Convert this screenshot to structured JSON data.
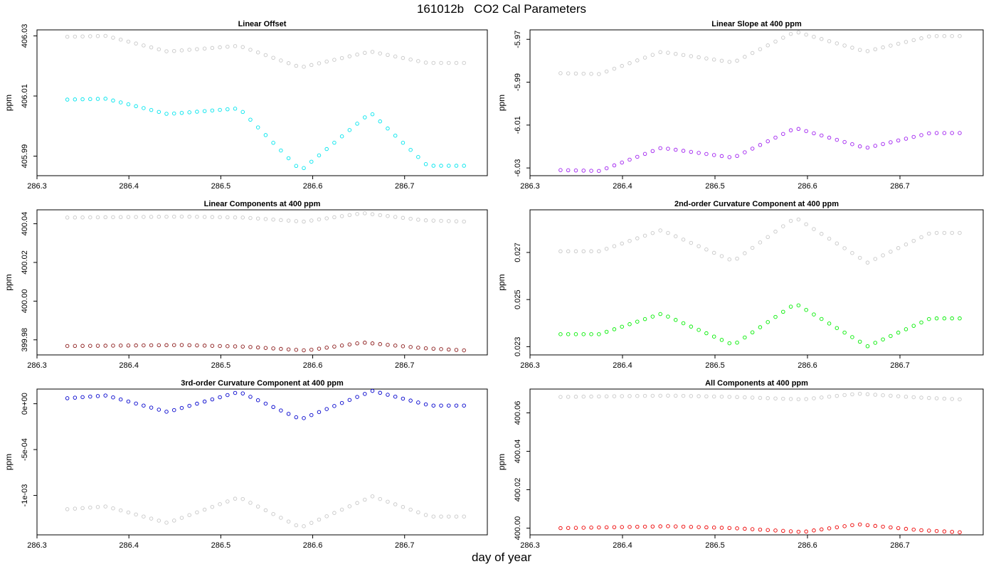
{
  "figure": {
    "title": "161012b   CO2 Cal Parameters",
    "xlabel": "day of year"
  },
  "chart_data": [
    {
      "type": "scatter",
      "title": "Linear Offset",
      "ylabel": "ppm",
      "xlim": [
        286.3,
        286.79
      ],
      "ylim": [
        405.9835,
        406.032
      ],
      "xticks": [
        286.3,
        286.4,
        286.5,
        286.6,
        286.7
      ],
      "xtick_labels": [
        "286.3",
        "286.4",
        "286.5",
        "286.6",
        "286.7"
      ],
      "yticks": [
        405.99,
        406.01,
        406.03
      ],
      "ytick_labels": [
        "405.99",
        "406.01",
        "406.03"
      ],
      "x_range": [
        286.333,
        286.767,
        0.0083
      ],
      "series": [
        {
          "color": "#c8c8c8",
          "knots": [
            [
              286.333,
              406.0297
            ],
            [
              286.375,
              406.03
            ],
            [
              286.442,
              406.0248
            ],
            [
              286.52,
              406.0267
            ],
            [
              286.587,
              406.0195
            ],
            [
              286.663,
              406.0248
            ],
            [
              286.725,
              406.021
            ],
            [
              286.767,
              406.021
            ]
          ]
        },
        {
          "color": "#00e5ee",
          "knots": [
            [
              286.333,
              406.0088
            ],
            [
              286.375,
              406.0091
            ],
            [
              286.442,
              406.004
            ],
            [
              286.52,
              406.0059
            ],
            [
              286.587,
              405.9852
            ],
            [
              286.663,
              406.0045
            ],
            [
              286.725,
              405.9868
            ],
            [
              286.767,
              405.9868
            ]
          ]
        }
      ]
    },
    {
      "type": "scatter",
      "title": "Linear Slope at 400 ppm",
      "ylabel": "ppm",
      "xlim": [
        286.3,
        286.79
      ],
      "ylim": [
        -6.0336,
        -5.9656
      ],
      "xticks": [
        286.3,
        286.4,
        286.5,
        286.6,
        286.7
      ],
      "xtick_labels": [
        "286.3",
        "286.4",
        "286.5",
        "286.6",
        "286.7"
      ],
      "yticks": [
        -6.03,
        -6.01,
        -5.99,
        -5.97
      ],
      "ytick_labels": [
        "-6.03",
        "-6.01",
        "-5.99",
        "-5.97"
      ],
      "x_range": [
        286.333,
        286.767,
        0.0083
      ],
      "series": [
        {
          "color": "#c8c8c8",
          "knots": [
            [
              286.333,
              -5.9858
            ],
            [
              286.375,
              -5.9862
            ],
            [
              286.442,
              -5.9758
            ],
            [
              286.52,
              -5.9808
            ],
            [
              286.587,
              -5.9664
            ],
            [
              286.663,
              -5.9757
            ],
            [
              286.733,
              -5.9685
            ],
            [
              286.767,
              -5.9685
            ]
          ]
        },
        {
          "color": "#a020f0",
          "knots": [
            [
              286.333,
              -6.031
            ],
            [
              286.375,
              -6.0314
            ],
            [
              286.442,
              -6.0206
            ],
            [
              286.52,
              -6.0252
            ],
            [
              286.587,
              -6.0114
            ],
            [
              286.663,
              -6.0207
            ],
            [
              286.733,
              -6.0137
            ],
            [
              286.767,
              -6.0137
            ]
          ]
        }
      ]
    },
    {
      "type": "scatter",
      "title": "Linear Components at 400 ppm",
      "ylabel": "ppm",
      "xlim": [
        286.3,
        286.79
      ],
      "ylim": [
        399.9722,
        400.0472
      ],
      "xticks": [
        286.3,
        286.4,
        286.5,
        286.6,
        286.7
      ],
      "xtick_labels": [
        "286.3",
        "286.4",
        "286.5",
        "286.6",
        "286.7"
      ],
      "yticks": [
        399.98,
        400.0,
        400.02,
        400.04
      ],
      "ytick_labels": [
        "399.98",
        "400.00",
        "400.02",
        "400.04"
      ],
      "x_range": [
        286.333,
        286.767,
        0.0083
      ],
      "series": [
        {
          "color": "#c8c8c8",
          "knots": [
            [
              286.333,
              400.0432
            ],
            [
              286.458,
              400.0437
            ],
            [
              286.525,
              400.0432
            ],
            [
              286.59,
              400.0411
            ],
            [
              286.655,
              400.0455
            ],
            [
              286.72,
              400.0418
            ],
            [
              286.767,
              400.0411
            ]
          ]
        },
        {
          "color": "#8b1a1a",
          "knots": [
            [
              286.333,
              399.9768
            ],
            [
              286.458,
              399.9773
            ],
            [
              286.525,
              399.9765
            ],
            [
              286.593,
              399.9745
            ],
            [
              286.655,
              399.9786
            ],
            [
              286.72,
              399.9757
            ],
            [
              286.767,
              399.9745
            ]
          ]
        }
      ]
    },
    {
      "type": "scatter",
      "title": "2nd-order Curvature Component at 400 ppm",
      "ylabel": "ppm",
      "xlim": [
        286.3,
        286.79
      ],
      "ylim": [
        0.02265,
        0.02881
      ],
      "xticks": [
        286.3,
        286.4,
        286.5,
        286.6,
        286.7
      ],
      "xtick_labels": [
        "286.3",
        "286.4",
        "286.5",
        "286.6",
        "286.7"
      ],
      "yticks": [
        0.023,
        0.025,
        0.027
      ],
      "ytick_labels": [
        "0.023",
        "0.025",
        "0.027"
      ],
      "x_range": [
        286.333,
        286.767,
        0.0083
      ],
      "series": [
        {
          "color": "#c8c8c8",
          "knots": [
            [
              286.333,
              0.02705
            ],
            [
              286.375,
              0.02705
            ],
            [
              286.442,
              0.02795
            ],
            [
              286.52,
              0.02663
            ],
            [
              286.587,
              0.02848
            ],
            [
              286.665,
              0.02657
            ],
            [
              286.733,
              0.02783
            ],
            [
              286.767,
              0.02783
            ]
          ]
        },
        {
          "color": "#00ee00",
          "knots": [
            [
              286.333,
              0.02353
            ],
            [
              286.375,
              0.02353
            ],
            [
              286.442,
              0.0244
            ],
            [
              286.52,
              0.02307
            ],
            [
              286.587,
              0.02483
            ],
            [
              286.665,
              0.02302
            ],
            [
              286.733,
              0.0242
            ],
            [
              286.767,
              0.0242
            ]
          ]
        }
      ]
    },
    {
      "type": "scatter",
      "title": "3rd-order Curvature Component at 400 ppm",
      "ylabel": "ppm",
      "xlim": [
        286.3,
        286.79
      ],
      "ylim": [
        -0.00143,
        0.00016
      ],
      "xticks": [
        286.3,
        286.4,
        286.5,
        286.6,
        286.7
      ],
      "xtick_labels": [
        "286.3",
        "286.4",
        "286.5",
        "286.6",
        "286.7"
      ],
      "yticks": [
        -0.001,
        -0.0005,
        0.0
      ],
      "ytick_labels": [
        "-1e-03",
        "-5e-04",
        "0e+00"
      ],
      "x_range": [
        286.333,
        286.767,
        0.0083
      ],
      "series": [
        {
          "color": "#c8c8c8",
          "knots": [
            [
              286.333,
              -0.00115
            ],
            [
              286.375,
              -0.00112
            ],
            [
              286.442,
              -0.0013
            ],
            [
              286.52,
              -0.00102
            ],
            [
              286.587,
              -0.00135
            ],
            [
              286.665,
              -0.00101
            ],
            [
              286.728,
              -0.00123
            ],
            [
              286.767,
              -0.00123
            ]
          ]
        },
        {
          "color": "#0000cd",
          "knots": [
            [
              286.333,
              6e-05
            ],
            [
              286.375,
              9e-05
            ],
            [
              286.442,
              -9e-05
            ],
            [
              286.52,
              0.00013
            ],
            [
              286.587,
              -0.00017
            ],
            [
              286.665,
              0.00014
            ],
            [
              286.728,
              -2e-05
            ],
            [
              286.767,
              -2e-05
            ]
          ]
        }
      ]
    },
    {
      "type": "scatter",
      "title": "All Components at 400 ppm",
      "ylabel": "ppm",
      "xlim": [
        286.3,
        286.79
      ],
      "ylim": [
        399.9965,
        400.0724
      ],
      "xticks": [
        286.3,
        286.4,
        286.5,
        286.6,
        286.7
      ],
      "xtick_labels": [
        "286.3",
        "286.4",
        "286.5",
        "286.6",
        "286.7"
      ],
      "yticks": [
        400.0,
        400.02,
        400.04,
        400.06
      ],
      "ytick_labels": [
        "400.00",
        "400.02",
        "400.04",
        "400.06"
      ],
      "x_range": [
        286.333,
        286.767,
        0.0083
      ],
      "series": [
        {
          "color": "#c8c8c8",
          "knots": [
            [
              286.333,
              400.0683
            ],
            [
              286.45,
              400.069
            ],
            [
              286.52,
              400.0683
            ],
            [
              286.595,
              400.067
            ],
            [
              286.655,
              400.07
            ],
            [
              286.72,
              400.068
            ],
            [
              286.767,
              400.067
            ]
          ]
        },
        {
          "color": "#ee0000",
          "knots": [
            [
              286.333,
              400.0
            ],
            [
              286.45,
              400.001
            ],
            [
              286.52,
              400.0
            ],
            [
              286.595,
              399.998
            ],
            [
              286.655,
              400.002
            ],
            [
              286.72,
              399.999
            ],
            [
              286.767,
              399.9978
            ]
          ]
        }
      ]
    }
  ]
}
